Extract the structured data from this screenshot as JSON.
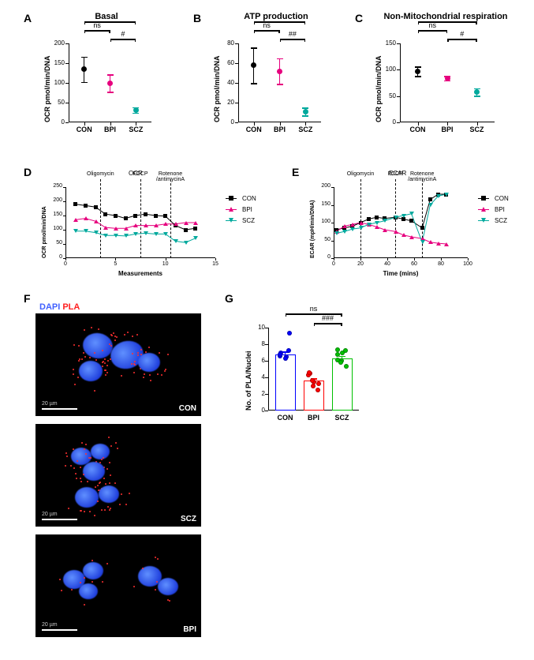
{
  "groups": [
    "CON",
    "BPI",
    "SCZ"
  ],
  "colors": {
    "CON": "#000000",
    "BPI": "#e6007e",
    "SCZ": "#00a99d"
  },
  "panelA": {
    "title": "Basal",
    "ylabel": "OCR pmol/min/DNA",
    "ylim": [
      0,
      200
    ],
    "ytick_step": 50,
    "points": {
      "CON": {
        "y": 135,
        "err": 32
      },
      "BPI": {
        "y": 100,
        "err": 22
      },
      "SCZ": {
        "y": 32,
        "err": 7
      }
    },
    "sig": [
      {
        "from": "CON",
        "to": "BPI",
        "label": "ns",
        "level": 1
      },
      {
        "from": "BPI",
        "to": "SCZ",
        "label": "#",
        "level": 0
      },
      {
        "from": "CON",
        "to": "SCZ",
        "label": "",
        "level": 2,
        "umbrella": true
      }
    ]
  },
  "panelB": {
    "title": "ATP production",
    "ylabel": "OCR pmol/min/DNA",
    "ylim": [
      0,
      80
    ],
    "ytick_step": 20,
    "points": {
      "CON": {
        "y": 58,
        "err": 18
      },
      "BPI": {
        "y": 52,
        "err": 13
      },
      "SCZ": {
        "y": 11,
        "err": 4
      }
    },
    "sig": [
      {
        "from": "CON",
        "to": "BPI",
        "label": "ns",
        "level": 1
      },
      {
        "from": "BPI",
        "to": "SCZ",
        "label": "##",
        "level": 0
      },
      {
        "from": "CON",
        "to": "SCZ",
        "label": "",
        "level": 2,
        "umbrella": true
      }
    ]
  },
  "panelC": {
    "title": "Non-Mitochondrial respiration",
    "ylabel": "OCR pmol/min/DNA",
    "ylim": [
      0,
      150
    ],
    "ytick_step": 50,
    "points": {
      "CON": {
        "y": 97,
        "err": 9
      },
      "BPI": {
        "y": 84,
        "err": 4
      },
      "SCZ": {
        "y": 58,
        "err": 7
      }
    },
    "sig": [
      {
        "from": "CON",
        "to": "BPI",
        "label": "ns",
        "level": 1
      },
      {
        "from": "BPI",
        "to": "SCZ",
        "label": "#",
        "level": 0
      },
      {
        "from": "CON",
        "to": "SCZ",
        "label": "",
        "level": 2,
        "umbrella": true
      }
    ]
  },
  "panelD": {
    "title": "OCR",
    "ylabel": "OCR pmol/min/DNA",
    "xlabel": "Measurements",
    "xlim": [
      0,
      15
    ],
    "ylim": [
      0,
      250
    ],
    "ytick_step": 50,
    "xtick_step": 5,
    "injections": [
      {
        "x": 3.5,
        "label": "Oligomycin"
      },
      {
        "x": 7.5,
        "label": "FCCP"
      },
      {
        "x": 10.5,
        "label": "Rotenone\n/antimycinA"
      }
    ],
    "series": {
      "CON": {
        "marker": "square",
        "color": "#000000",
        "y": [
          190,
          185,
          180,
          155,
          150,
          140,
          150,
          155,
          150,
          148,
          115,
          100,
          105
        ]
      },
      "BPI": {
        "marker": "triangle",
        "color": "#e6007e",
        "y": [
          135,
          140,
          130,
          108,
          105,
          105,
          115,
          115,
          115,
          120,
          120,
          125,
          125
        ]
      },
      "SCZ": {
        "marker": "invtriangle",
        "color": "#00a99d",
        "y": [
          95,
          95,
          90,
          80,
          80,
          78,
          85,
          88,
          85,
          85,
          60,
          55,
          70
        ]
      }
    }
  },
  "panelE": {
    "title": "ECAR",
    "ylabel": "ECAR (mpH/min/DNA)",
    "xlabel": "Time (mins)",
    "xlim": [
      0,
      100
    ],
    "ylim": [
      0,
      200
    ],
    "ytick_step": 50,
    "xtick_step": 20,
    "injections": [
      {
        "x": 20,
        "label": "Oligomycin"
      },
      {
        "x": 46,
        "label": "FCCP"
      },
      {
        "x": 66,
        "label": "Rotenone\n/antimycinA"
      }
    ],
    "series": {
      "CON": {
        "marker": "square",
        "color": "#000000",
        "x": [
          2,
          8,
          14,
          20,
          26,
          32,
          38,
          46,
          52,
          58,
          66,
          72,
          78,
          84
        ],
        "y": [
          80,
          85,
          90,
          100,
          110,
          115,
          112,
          115,
          110,
          105,
          85,
          165,
          180,
          180
        ]
      },
      "BPI": {
        "marker": "triangle",
        "color": "#e6007e",
        "x": [
          2,
          8,
          14,
          20,
          26,
          32,
          38,
          46,
          52,
          58,
          66,
          72,
          78,
          84
        ],
        "y": [
          75,
          90,
          95,
          100,
          95,
          88,
          80,
          75,
          65,
          60,
          55,
          45,
          42,
          40
        ]
      },
      "SCZ": {
        "marker": "invtriangle",
        "color": "#00a99d",
        "x": [
          2,
          8,
          14,
          20,
          26,
          32,
          38,
          46,
          52,
          58,
          66,
          72,
          78,
          84
        ],
        "y": [
          70,
          75,
          82,
          85,
          95,
          100,
          105,
          115,
          120,
          125,
          45,
          150,
          175,
          180
        ]
      }
    }
  },
  "panelF": {
    "legend_dapi": "DAPI",
    "legend_pla": "PLA",
    "images": [
      "CON",
      "SCZ",
      "BPI"
    ],
    "scalebar_label": "20 µm"
  },
  "panelG": {
    "ylabel": "No. of PLA/Nuclei",
    "ylim": [
      0,
      10
    ],
    "ytick_step": 2,
    "bars": {
      "CON": {
        "mean": 6.8,
        "err": 0.3,
        "color": "#0000ff",
        "points": [
          7.0,
          6.5,
          7.2,
          6.6,
          6.3,
          9.3,
          6.8
        ]
      },
      "BPI": {
        "mean": 3.6,
        "err": 0.3,
        "color": "#ff0000",
        "points": [
          4.5,
          3.4,
          3.2,
          4.3,
          3.0,
          2.5,
          4.6,
          3.6
        ]
      },
      "SCZ": {
        "mean": 6.3,
        "err": 0.3,
        "color": "#00c000",
        "points": [
          7.3,
          6.0,
          5.3,
          6.1,
          5.8,
          7.2,
          6.8,
          7.0
        ]
      }
    },
    "sig": [
      {
        "from": "CON",
        "to": "SCZ",
        "label": "ns",
        "level": 1
      },
      {
        "from": "BPI",
        "to": "SCZ",
        "label": "###",
        "level": 0
      }
    ]
  }
}
